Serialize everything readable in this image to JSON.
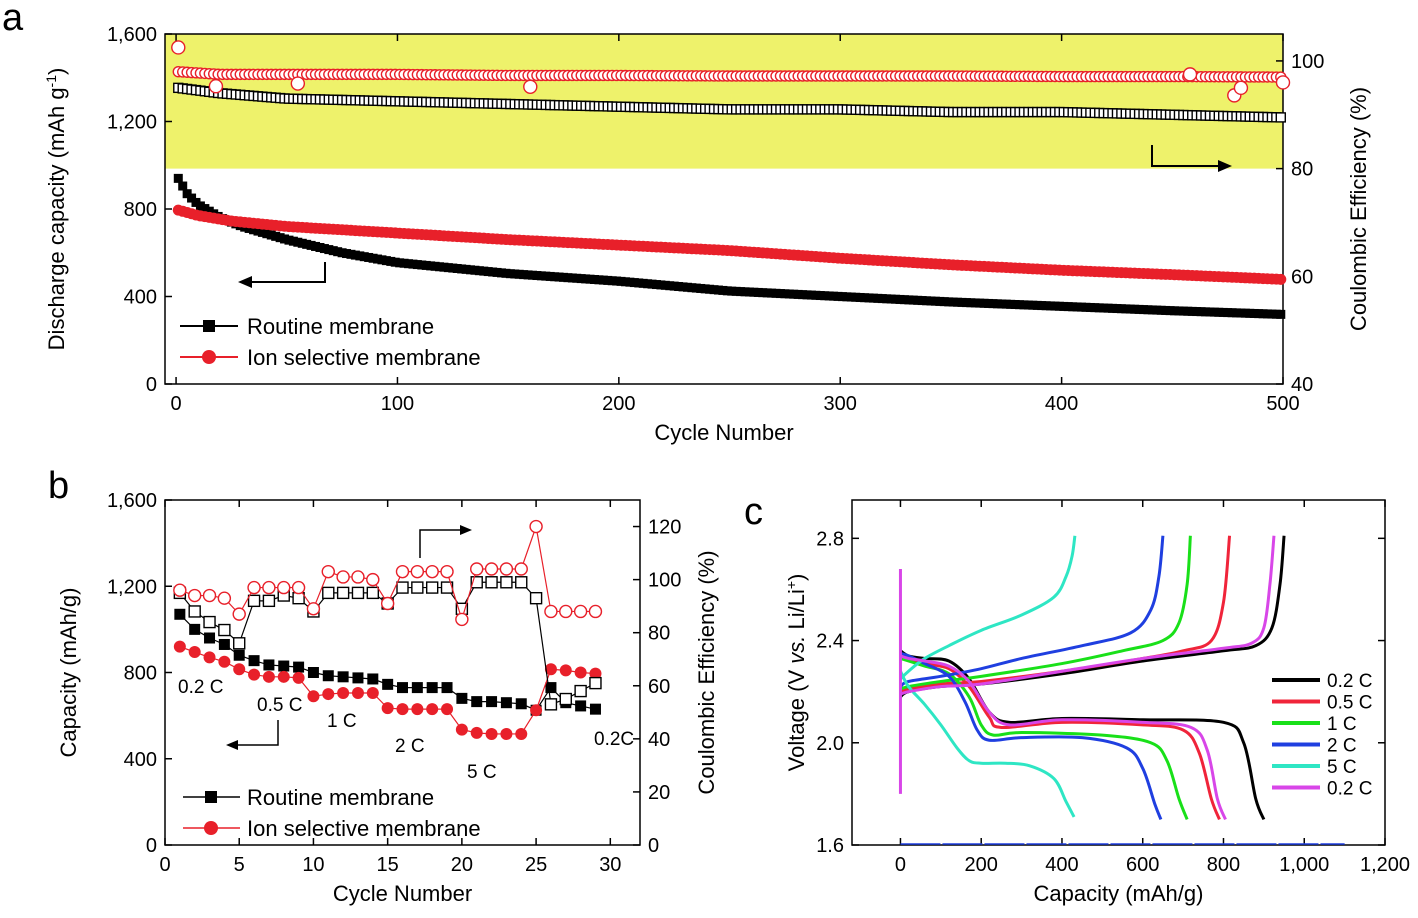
{
  "chart_data": [
    {
      "panel": "a",
      "type": "scatter",
      "title": "",
      "xlabel": "Cycle Number",
      "ylabel": "Discharge capacity (mAh g",
      "ylabel_sup": "-1",
      "ylabel_close": ")",
      "y2label": "Coulombic Efficiency (%)",
      "xlim": [
        -5,
        500
      ],
      "ylim": [
        0,
        1600
      ],
      "y2lim": [
        40,
        105
      ],
      "x_ticks": [
        0,
        100,
        200,
        300,
        400,
        500
      ],
      "y_ticks": [
        0,
        400,
        800,
        1200,
        1600
      ],
      "y2_ticks": [
        40,
        60,
        80,
        100
      ],
      "x_tick_labels": [
        "0",
        "100",
        "200",
        "300",
        "400",
        "500"
      ],
      "y_tick_labels": [
        "0",
        "400",
        "800",
        "1,200",
        "1,600"
      ],
      "y2_tick_labels": [
        "40",
        "60",
        "80",
        "100"
      ],
      "highlight": {
        "y2_from": 80,
        "y2_to": 105,
        "color": "#eef26b"
      },
      "legend": [
        "Routine membrane",
        "Ion selective membrane"
      ],
      "series": [
        {
          "name": "Routine membrane",
          "axis": "left",
          "marker": "filled-square",
          "color": "#000000",
          "x": [
            1,
            5,
            10,
            20,
            30,
            50,
            75,
            100,
            150,
            200,
            250,
            300,
            350,
            400,
            450,
            500
          ],
          "values": [
            940,
            870,
            820,
            760,
            720,
            660,
            600,
            555,
            505,
            470,
            425,
            400,
            375,
            355,
            335,
            318
          ]
        },
        {
          "name": "Ion selective membrane",
          "axis": "left",
          "marker": "filled-circle",
          "color": "#e8202a",
          "x": [
            1,
            10,
            25,
            50,
            100,
            150,
            200,
            250,
            300,
            350,
            400,
            450,
            500
          ],
          "values": [
            795,
            770,
            745,
            720,
            690,
            660,
            635,
            610,
            575,
            545,
            520,
            500,
            478
          ]
        },
        {
          "name": "Routine membrane CE",
          "axis": "right",
          "marker": "open-square",
          "color": "#000000",
          "x": [
            1,
            20,
            50,
            100,
            150,
            200,
            250,
            300,
            350,
            400,
            450,
            500
          ],
          "values": [
            95,
            94,
            93,
            92.5,
            92,
            91.5,
            91,
            91,
            90.5,
            90.5,
            90,
            89.5
          ]
        },
        {
          "name": "Ion selective membrane CE",
          "axis": "right",
          "marker": "open-circle",
          "color": "#e8202a",
          "x": [
            1,
            20,
            50,
            100,
            150,
            200,
            250,
            300,
            350,
            400,
            450,
            500
          ],
          "values": [
            98,
            97.5,
            97.5,
            97.5,
            97.3,
            97.3,
            97.2,
            97.2,
            97.2,
            97.1,
            97.1,
            97
          ]
        }
      ],
      "outliers": [
        {
          "series": "Ion selective membrane CE",
          "x": [
            1,
            18,
            55,
            160,
            458,
            478,
            481,
            500
          ],
          "values": [
            102.5,
            95.3,
            95.8,
            95.2,
            97.5,
            93.6,
            95,
            96
          ]
        }
      ]
    },
    {
      "panel": "b",
      "type": "scatter",
      "title": "",
      "xlabel": "Cycle Number",
      "ylabel": "Capacity (mAh/g)",
      "y2label": "Coulombic Efficiency (%)",
      "xlim": [
        0,
        32
      ],
      "ylim": [
        0,
        1600
      ],
      "y2lim": [
        0,
        130
      ],
      "x_ticks": [
        0,
        5,
        10,
        15,
        20,
        25,
        30
      ],
      "y_ticks": [
        0,
        400,
        800,
        1200,
        1600
      ],
      "y2_ticks": [
        0,
        20,
        40,
        60,
        80,
        100,
        120
      ],
      "x_tick_labels": [
        "0",
        "5",
        "10",
        "15",
        "20",
        "25",
        "30"
      ],
      "y_tick_labels": [
        "0",
        "400",
        "800",
        "1,200",
        "1,600"
      ],
      "y2_tick_labels": [
        "0",
        "20",
        "40",
        "60",
        "80",
        "100",
        "120"
      ],
      "legend": [
        "Routine membrane",
        "Ion selective membrane"
      ],
      "rate_labels": [
        "0.2 C",
        "0.5 C",
        "1 C",
        "2 C",
        "5 C",
        "0.2C"
      ],
      "x": [
        1,
        2,
        3,
        4,
        5,
        6,
        7,
        8,
        9,
        10,
        11,
        12,
        13,
        14,
        15,
        16,
        17,
        18,
        19,
        20,
        21,
        22,
        23,
        24,
        25,
        26,
        27,
        28,
        29
      ],
      "series": [
        {
          "name": "Routine membrane",
          "axis": "left",
          "marker": "filled-square",
          "color": "#000000",
          "values": [
            1070,
            1000,
            960,
            930,
            880,
            855,
            835,
            830,
            825,
            800,
            785,
            780,
            775,
            770,
            745,
            730,
            730,
            730,
            730,
            680,
            665,
            665,
            660,
            655,
            625,
            730,
            660,
            645,
            630
          ]
        },
        {
          "name": "Ion selective membrane",
          "axis": "left",
          "marker": "filled-circle",
          "color": "#e8202a",
          "values": [
            920,
            895,
            870,
            850,
            815,
            790,
            780,
            780,
            775,
            690,
            700,
            705,
            705,
            705,
            635,
            630,
            630,
            630,
            630,
            535,
            520,
            515,
            515,
            515,
            625,
            815,
            810,
            800,
            795
          ]
        },
        {
          "name": "Routine membrane CE",
          "axis": "right",
          "marker": "open-square",
          "color": "#000000",
          "values": [
            95,
            88,
            84,
            81,
            76,
            92,
            92,
            94,
            93,
            88,
            95,
            95,
            95,
            95,
            91,
            97,
            97,
            97,
            97,
            89,
            99,
            99,
            99,
            99,
            93,
            53,
            55,
            58,
            61
          ]
        },
        {
          "name": "Ion selective membrane CE",
          "axis": "right",
          "marker": "open-circle",
          "color": "#e8202a",
          "values": [
            96,
            94,
            94,
            93,
            87,
            97,
            97,
            97,
            97,
            89,
            103,
            101,
            101,
            100,
            91,
            103,
            103,
            103,
            103,
            85,
            104,
            104,
            104,
            104,
            120,
            88,
            88,
            88,
            88
          ]
        }
      ]
    },
    {
      "panel": "c",
      "type": "line",
      "title": "",
      "xlabel": "Capacity (mAh/g)",
      "ylabel": "Voltage (V vs. Li/Li+)",
      "ylabel_parts": [
        "Voltage (V ",
        "vs.",
        " Li/Li",
        "+",
        ")"
      ],
      "xlim": [
        -120,
        1200
      ],
      "ylim": [
        1.6,
        2.95
      ],
      "x_ticks": [
        0,
        200,
        400,
        600,
        800,
        1000,
        1200
      ],
      "y_ticks": [
        1.6,
        2.0,
        2.4,
        2.8
      ],
      "x_tick_labels": [
        "0",
        "200",
        "400",
        "600",
        "800",
        "1,000",
        "1,200"
      ],
      "y_tick_labels": [
        "1.6",
        "2.0",
        "2.4",
        "2.8"
      ],
      "legend": [
        "0.2 C",
        "0.5 C",
        "1 C",
        "2 C",
        "5 C",
        "0.2 C"
      ],
      "series": [
        {
          "name": "0.2 C",
          "color": "#000000",
          "discharge": {
            "x": [
              0,
              20,
              60,
              120,
              170,
              220,
              270,
              400,
              600,
              800,
              850,
              880,
              900
            ],
            "values": [
              2.36,
              2.34,
              2.33,
              2.32,
              2.25,
              2.12,
              2.08,
              2.095,
              2.09,
              2.08,
              2.0,
              1.78,
              1.7
            ]
          },
          "charge": {
            "x": [
              0,
              20,
              100,
              200,
              400,
              600,
              800,
              880,
              920,
              940,
              950
            ],
            "values": [
              2.18,
              2.2,
              2.22,
              2.23,
              2.27,
              2.32,
              2.36,
              2.38,
              2.45,
              2.62,
              2.81
            ]
          }
        },
        {
          "name": "0.5 C",
          "color": "#f0243a",
          "discharge": {
            "x": [
              0,
              20,
              60,
              120,
              170,
              220,
              250,
              400,
              600,
              700,
              740,
              770,
              790
            ],
            "values": [
              2.34,
              2.33,
              2.31,
              2.29,
              2.22,
              2.1,
              2.06,
              2.08,
              2.07,
              2.05,
              1.96,
              1.78,
              1.7
            ]
          },
          "charge": {
            "x": [
              0,
              20,
              100,
              200,
              400,
              600,
              700,
              770,
              800,
              815
            ],
            "values": [
              2.2,
              2.21,
              2.23,
              2.24,
              2.28,
              2.33,
              2.36,
              2.4,
              2.55,
              2.81
            ]
          }
        },
        {
          "name": "1 C",
          "color": "#19e019",
          "discharge": {
            "x": [
              0,
              20,
              60,
              120,
              170,
              200,
              230,
              300,
              500,
              620,
              660,
              690,
              710
            ],
            "values": [
              2.33,
              2.32,
              2.3,
              2.27,
              2.18,
              2.07,
              2.03,
              2.04,
              2.03,
              2.0,
              1.93,
              1.78,
              1.7
            ]
          },
          "charge": {
            "x": [
              0,
              20,
              100,
              200,
              400,
              550,
              650,
              690,
              710,
              718
            ],
            "values": [
              2.21,
              2.22,
              2.24,
              2.26,
              2.31,
              2.36,
              2.4,
              2.47,
              2.62,
              2.81
            ]
          }
        },
        {
          "name": "2 C",
          "color": "#1f3fe0",
          "discharge": {
            "x": [
              0,
              20,
              60,
              120,
              160,
              190,
              220,
              300,
              450,
              560,
              600,
              630,
              645
            ],
            "values": [
              2.35,
              2.34,
              2.31,
              2.26,
              2.16,
              2.05,
              2.01,
              2.02,
              2.02,
              1.98,
              1.9,
              1.76,
              1.7
            ]
          },
          "charge": {
            "x": [
              0,
              20,
              100,
              200,
              300,
              450,
              570,
              620,
              640,
              650
            ],
            "values": [
              2.22,
              2.24,
              2.26,
              2.29,
              2.33,
              2.38,
              2.43,
              2.52,
              2.65,
              2.81
            ]
          }
        },
        {
          "name": "5 C",
          "color": "#2ee6c4",
          "discharge": {
            "x": [
              0,
              20,
              60,
              100,
              140,
              170,
              200,
              260,
              320,
              380,
              410,
              430
            ],
            "values": [
              2.28,
              2.22,
              2.15,
              2.07,
              1.98,
              1.93,
              1.92,
              1.92,
              1.91,
              1.86,
              1.77,
              1.71
            ]
          },
          "charge": {
            "x": [
              0,
              20,
              60,
              120,
              200,
              300,
              380,
              410,
              425,
              432
            ],
            "values": [
              2.25,
              2.28,
              2.33,
              2.38,
              2.44,
              2.5,
              2.57,
              2.65,
              2.73,
              2.81
            ]
          }
        },
        {
          "name": "0.2 C",
          "color": "#d846e8",
          "discharge": {
            "x": [
              0,
              20,
              60,
              120,
              170,
              220,
              270,
              400,
              600,
              720,
              760,
              785,
              805
            ],
            "values": [
              2.34,
              2.33,
              2.32,
              2.3,
              2.24,
              2.12,
              2.07,
              2.09,
              2.08,
              2.06,
              1.97,
              1.78,
              1.7
            ]
          },
          "charge": {
            "x": [
              0,
              20,
              100,
              200,
              400,
              600,
              800,
              870,
              900,
              915,
              925
            ],
            "values": [
              2.19,
              2.2,
              2.22,
              2.23,
              2.28,
              2.33,
              2.37,
              2.39,
              2.45,
              2.62,
              2.81
            ]
          }
        }
      ],
      "spike": {
        "x": [
          0,
          0,
          0
        ],
        "values": [
          1.8,
          2.68,
          2.2
        ]
      }
    }
  ]
}
